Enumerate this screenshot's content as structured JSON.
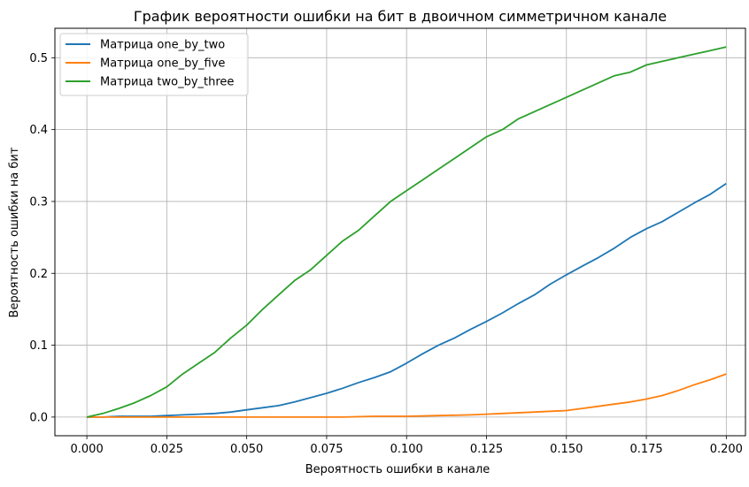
{
  "chart_data": {
    "type": "line",
    "title": "График вероятности ошибки на бит в двоичном симметричном канале",
    "xlabel": "Вероятность ошибки в канале",
    "ylabel": "Вероятность ошибки на бит",
    "xlim": [
      -0.01,
      0.206
    ],
    "ylim": [
      -0.026,
      0.541
    ],
    "xticks": [
      "0.000",
      "0.025",
      "0.050",
      "0.075",
      "0.100",
      "0.125",
      "0.150",
      "0.175",
      "0.200"
    ],
    "xtick_values": [
      0,
      0.025,
      0.05,
      0.075,
      0.1,
      0.125,
      0.15,
      0.175,
      0.2
    ],
    "yticks": [
      "0.0",
      "0.1",
      "0.2",
      "0.3",
      "0.4",
      "0.5"
    ],
    "ytick_values": [
      0,
      0.1,
      0.2,
      0.3,
      0.4,
      0.5
    ],
    "grid": true,
    "legend_position": "top-left",
    "series": [
      {
        "name": "Матрица one_by_two",
        "color": "#1f77b4",
        "x": [
          0,
          0.005,
          0.01,
          0.015,
          0.02,
          0.025,
          0.03,
          0.035,
          0.04,
          0.045,
          0.05,
          0.055,
          0.06,
          0.065,
          0.07,
          0.075,
          0.08,
          0.085,
          0.09,
          0.095,
          0.1,
          0.105,
          0.11,
          0.115,
          0.12,
          0.125,
          0.13,
          0.135,
          0.14,
          0.145,
          0.15,
          0.155,
          0.16,
          0.165,
          0.17,
          0.175,
          0.18,
          0.185,
          0.19,
          0.195,
          0.2
        ],
        "y": [
          0.0,
          0.0,
          0.001,
          0.001,
          0.001,
          0.002,
          0.003,
          0.004,
          0.005,
          0.007,
          0.01,
          0.013,
          0.016,
          0.021,
          0.027,
          0.033,
          0.04,
          0.048,
          0.055,
          0.063,
          0.075,
          0.088,
          0.1,
          0.11,
          0.122,
          0.133,
          0.145,
          0.158,
          0.17,
          0.185,
          0.198,
          0.21,
          0.222,
          0.235,
          0.25,
          0.262,
          0.272,
          0.285,
          0.298,
          0.31,
          0.325
        ]
      },
      {
        "name": "Матрица one_by_five",
        "color": "#ff7f0e",
        "x": [
          0,
          0.01,
          0.02,
          0.03,
          0.04,
          0.05,
          0.06,
          0.07,
          0.08,
          0.09,
          0.1,
          0.11,
          0.12,
          0.125,
          0.13,
          0.14,
          0.15,
          0.155,
          0.16,
          0.165,
          0.17,
          0.175,
          0.18,
          0.185,
          0.19,
          0.195,
          0.2
        ],
        "y": [
          0.0,
          0.0,
          0.0,
          0.0,
          0.0,
          0.0,
          0.0,
          0.0,
          0.0,
          0.001,
          0.001,
          0.002,
          0.003,
          0.004,
          0.005,
          0.007,
          0.009,
          0.012,
          0.015,
          0.018,
          0.021,
          0.025,
          0.03,
          0.037,
          0.045,
          0.052,
          0.06
        ]
      },
      {
        "name": "Матрица two_by_three",
        "color": "#2ca02c",
        "x": [
          0,
          0.005,
          0.01,
          0.015,
          0.02,
          0.025,
          0.03,
          0.035,
          0.04,
          0.045,
          0.05,
          0.055,
          0.06,
          0.065,
          0.07,
          0.075,
          0.08,
          0.085,
          0.09,
          0.095,
          0.1,
          0.105,
          0.11,
          0.115,
          0.12,
          0.125,
          0.13,
          0.135,
          0.14,
          0.145,
          0.15,
          0.155,
          0.16,
          0.165,
          0.17,
          0.175,
          0.18,
          0.185,
          0.19,
          0.195,
          0.2
        ],
        "y": [
          0.0,
          0.005,
          0.012,
          0.02,
          0.03,
          0.042,
          0.06,
          0.075,
          0.09,
          0.11,
          0.128,
          0.15,
          0.17,
          0.19,
          0.205,
          0.225,
          0.245,
          0.26,
          0.28,
          0.3,
          0.315,
          0.33,
          0.345,
          0.36,
          0.375,
          0.39,
          0.4,
          0.415,
          0.425,
          0.435,
          0.445,
          0.455,
          0.465,
          0.475,
          0.48,
          0.49,
          0.495,
          0.5,
          0.505,
          0.51,
          0.515
        ]
      }
    ]
  }
}
